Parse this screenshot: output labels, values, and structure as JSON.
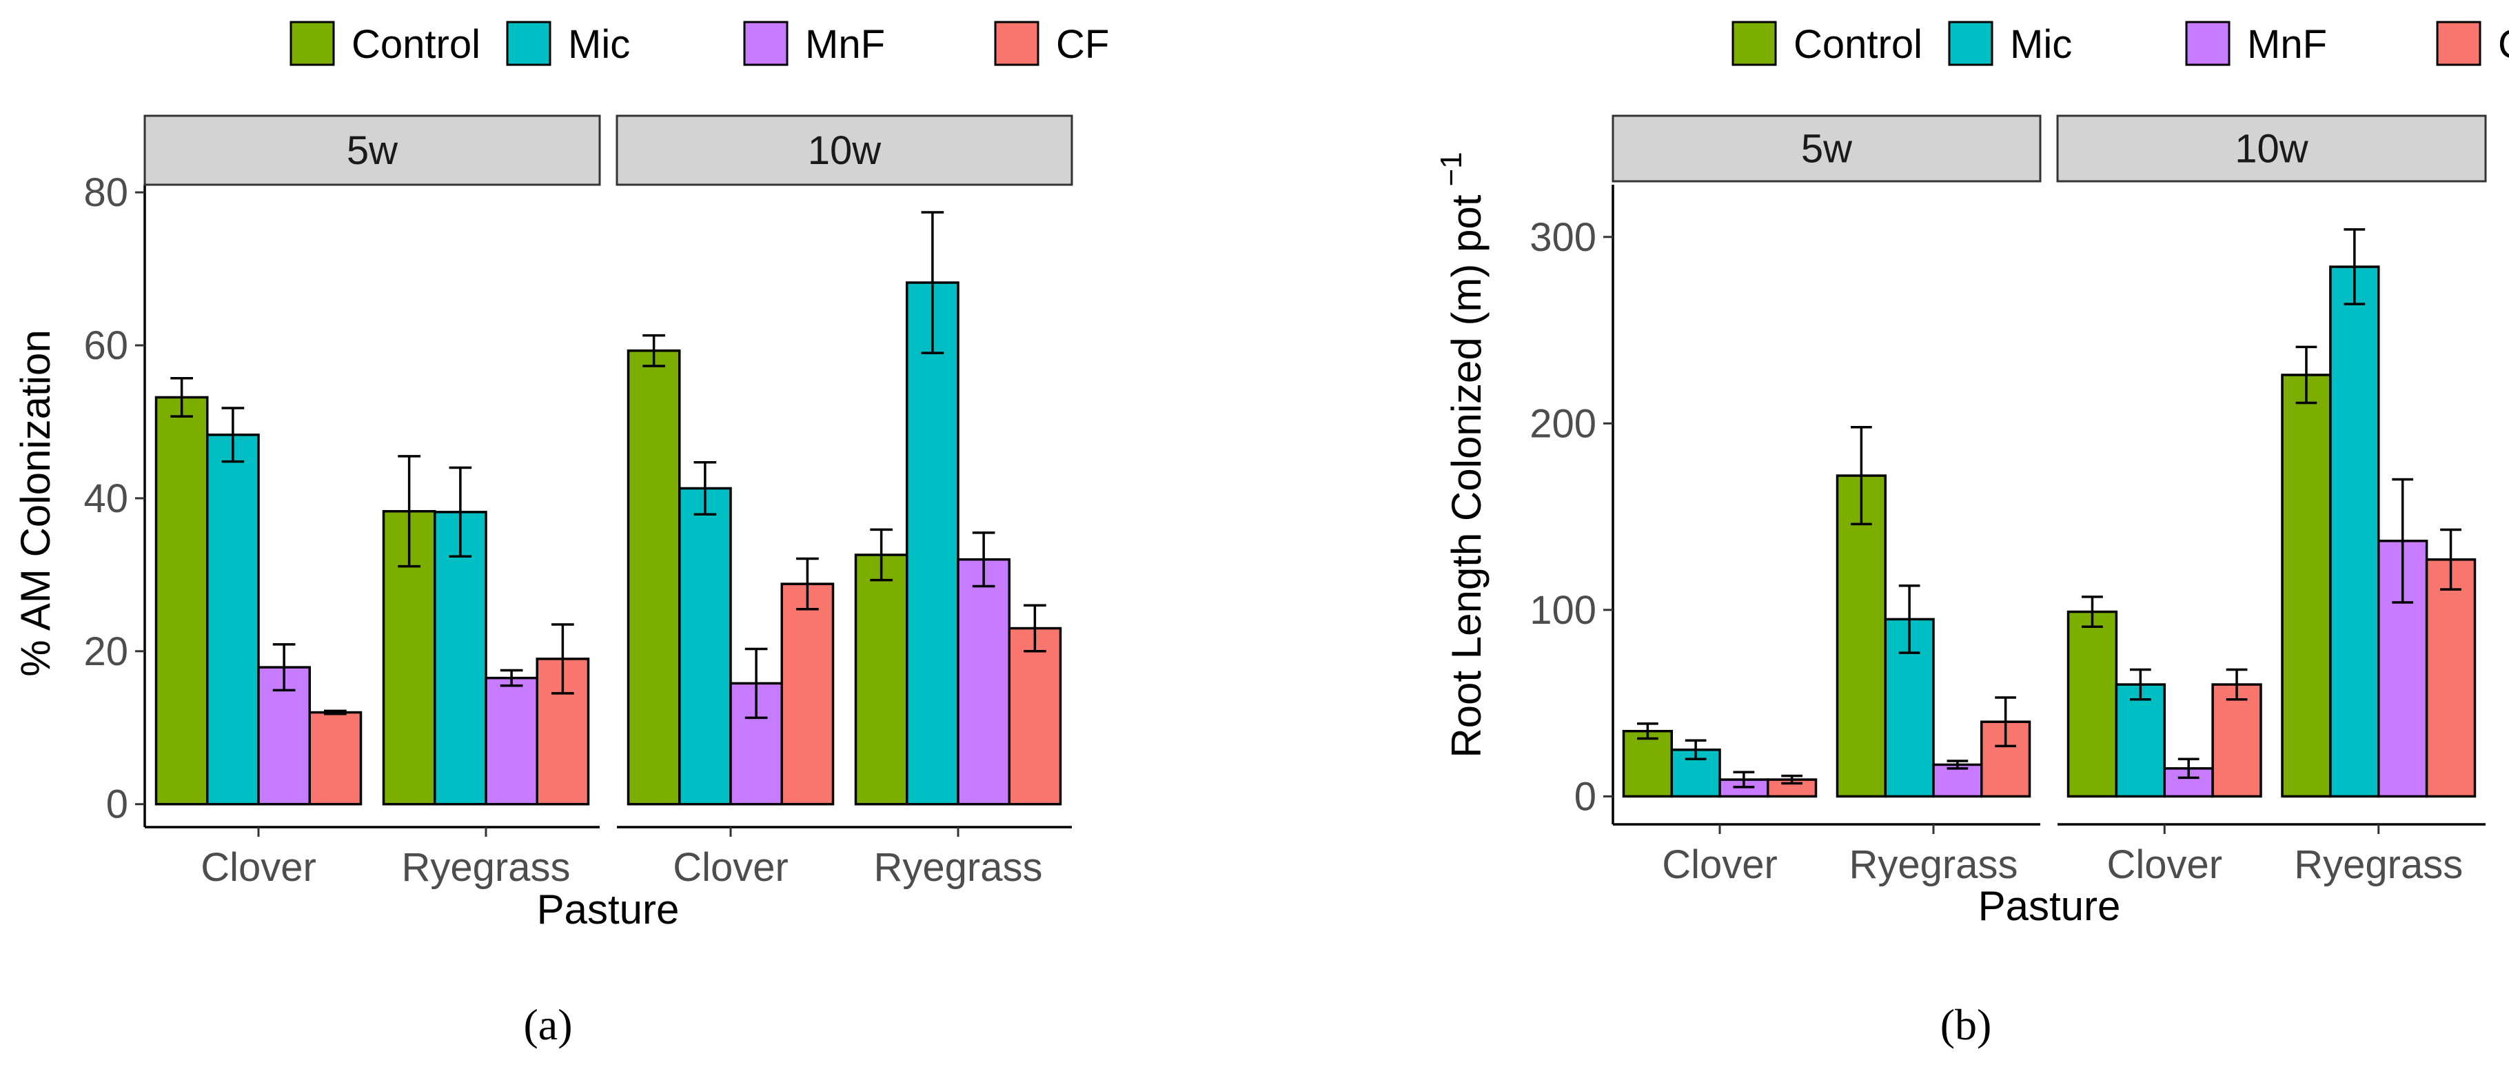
{
  "chart_data": [
    {
      "type": "bar",
      "panel_label": "a",
      "caption": "(a)",
      "facets": [
        "5w",
        "10w"
      ],
      "categories": [
        "Clover",
        "Ryegrass"
      ],
      "series_names": [
        "Control",
        "Mic",
        "MnF",
        "CF"
      ],
      "xlabel": "Pasture",
      "ylabel": "% AM Colonization",
      "ylim": [
        -3,
        81
      ],
      "yticks": [
        0,
        20,
        40,
        60,
        80
      ],
      "legend": "top",
      "values": {
        "5w": {
          "Clover": {
            "Control": [
              53.2,
              2.5
            ],
            "Mic": [
              48.3,
              3.5
            ],
            "MnF": [
              17.9,
              3.0
            ],
            "CF": [
              12.0,
              0.2
            ]
          },
          "Ryegrass": {
            "Control": [
              38.3,
              7.2
            ],
            "Mic": [
              38.2,
              5.8
            ],
            "MnF": [
              16.5,
              1.0
            ],
            "CF": [
              19.0,
              4.5
            ]
          }
        },
        "10w": {
          "Clover": {
            "Control": [
              59.3,
              2.0
            ],
            "Mic": [
              41.3,
              3.4
            ],
            "MnF": [
              15.8,
              4.5
            ],
            "CF": [
              28.8,
              3.3
            ]
          },
          "Ryegrass": {
            "Control": [
              32.6,
              3.3
            ],
            "Mic": [
              68.2,
              9.2
            ],
            "MnF": [
              32.0,
              3.5
            ],
            "CF": [
              23.0,
              3.0
            ]
          }
        }
      }
    },
    {
      "type": "bar",
      "panel_label": "b",
      "caption": "(b)",
      "facets": [
        "5w",
        "10w"
      ],
      "categories": [
        "Clover",
        "Ryegrass"
      ],
      "series_names": [
        "Control",
        "Mic",
        "MnF",
        "CF"
      ],
      "xlabel": "Pasture",
      "ylabel": "Root Length Colonized (m) pot",
      "ylabel_superscript": "−1",
      "ylim": [
        -15,
        328
      ],
      "yticks": [
        0,
        100,
        200,
        300
      ],
      "legend": "top",
      "values": {
        "5w": {
          "Clover": {
            "Control": [
              35,
              4
            ],
            "Mic": [
              25,
              5
            ],
            "MnF": [
              9,
              4
            ],
            "CF": [
              9,
              2
            ]
          },
          "Ryegrass": {
            "Control": [
              172,
              26
            ],
            "Mic": [
              95,
              18
            ],
            "MnF": [
              17,
              2
            ],
            "CF": [
              40,
              13
            ]
          }
        },
        "10w": {
          "Clover": {
            "Control": [
              99,
              8
            ],
            "Mic": [
              60,
              8
            ],
            "MnF": [
              15,
              5
            ],
            "CF": [
              60,
              8
            ]
          },
          "Ryegrass": {
            "Control": [
              226,
              15
            ],
            "Mic": [
              284,
              20
            ],
            "MnF": [
              137,
              33
            ],
            "CF": [
              127,
              16
            ]
          }
        }
      }
    }
  ],
  "colors": {
    "Control": "#7cae00",
    "Mic": "#00bfc4",
    "MnF": "#c77cff",
    "CF": "#f8766d",
    "strip_fill": "#d3d3d3",
    "tick_text": "#4d4d4d",
    "strip_text": "#1a1a1a"
  }
}
